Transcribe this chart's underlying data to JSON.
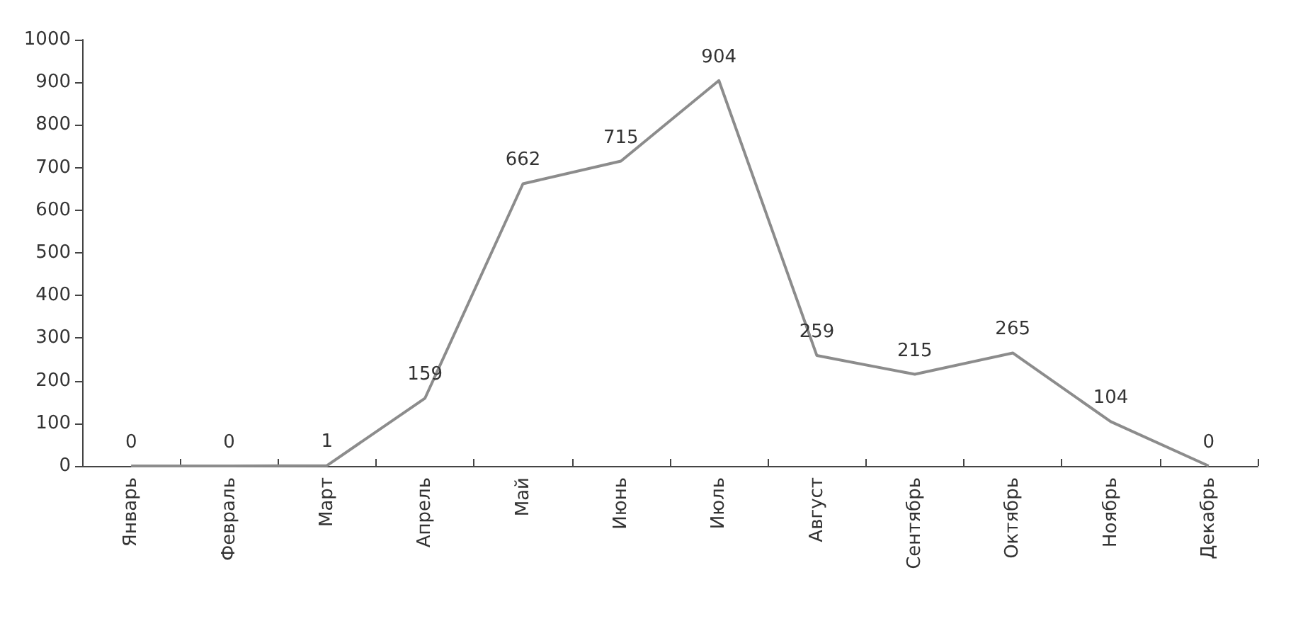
{
  "chart_data": {
    "type": "line",
    "categories": [
      "Январь",
      "Февраль",
      "Март",
      "Апрель",
      "Май",
      "Июнь",
      "Июль",
      "Август",
      "Сентябрь",
      "Октябрь",
      "Ноябрь",
      "Декабрь"
    ],
    "series": [
      {
        "color": "#8c8c8c",
        "values": [
          0,
          0,
          1,
          159,
          662,
          715,
          904,
          259,
          215,
          265,
          104,
          0
        ]
      }
    ],
    "ylim": [
      0,
      1000
    ],
    "yticks": [
      0,
      100,
      200,
      300,
      400,
      500,
      600,
      700,
      800,
      900,
      1000
    ],
    "grid": false,
    "data_labels": true,
    "marker": "none",
    "line_style": "solid"
  }
}
